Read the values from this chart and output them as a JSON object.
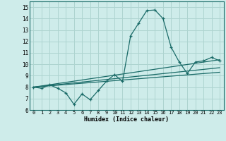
{
  "xlabel": "Humidex (Indice chaleur)",
  "bg_color": "#ceecea",
  "grid_color": "#aed4d0",
  "line_color": "#1a6b68",
  "xlim": [
    -0.5,
    23.5
  ],
  "ylim": [
    6,
    15.5
  ],
  "xticks": [
    0,
    1,
    2,
    3,
    4,
    5,
    6,
    7,
    8,
    9,
    10,
    11,
    12,
    13,
    14,
    15,
    16,
    17,
    18,
    19,
    20,
    21,
    22,
    23
  ],
  "yticks": [
    6,
    7,
    8,
    9,
    10,
    11,
    12,
    13,
    14,
    15
  ],
  "main_line_x": [
    0,
    1,
    2,
    3,
    4,
    5,
    6,
    7,
    8,
    9,
    10,
    11,
    12,
    13,
    14,
    15,
    16,
    17,
    18,
    19,
    20,
    21,
    22,
    23
  ],
  "main_line_y": [
    8.0,
    7.9,
    8.2,
    7.9,
    7.5,
    6.5,
    7.4,
    6.9,
    7.7,
    8.5,
    9.1,
    8.5,
    12.5,
    13.6,
    14.7,
    14.75,
    14.0,
    11.5,
    10.2,
    9.2,
    10.2,
    10.3,
    10.6,
    10.3
  ],
  "trend_line1_x": [
    0,
    23
  ],
  "trend_line1_y": [
    8.0,
    9.3
  ],
  "trend_line2_x": [
    0,
    23
  ],
  "trend_line2_y": [
    8.0,
    9.7
  ],
  "trend_line3_x": [
    0,
    23
  ],
  "trend_line3_y": [
    8.0,
    10.4
  ]
}
